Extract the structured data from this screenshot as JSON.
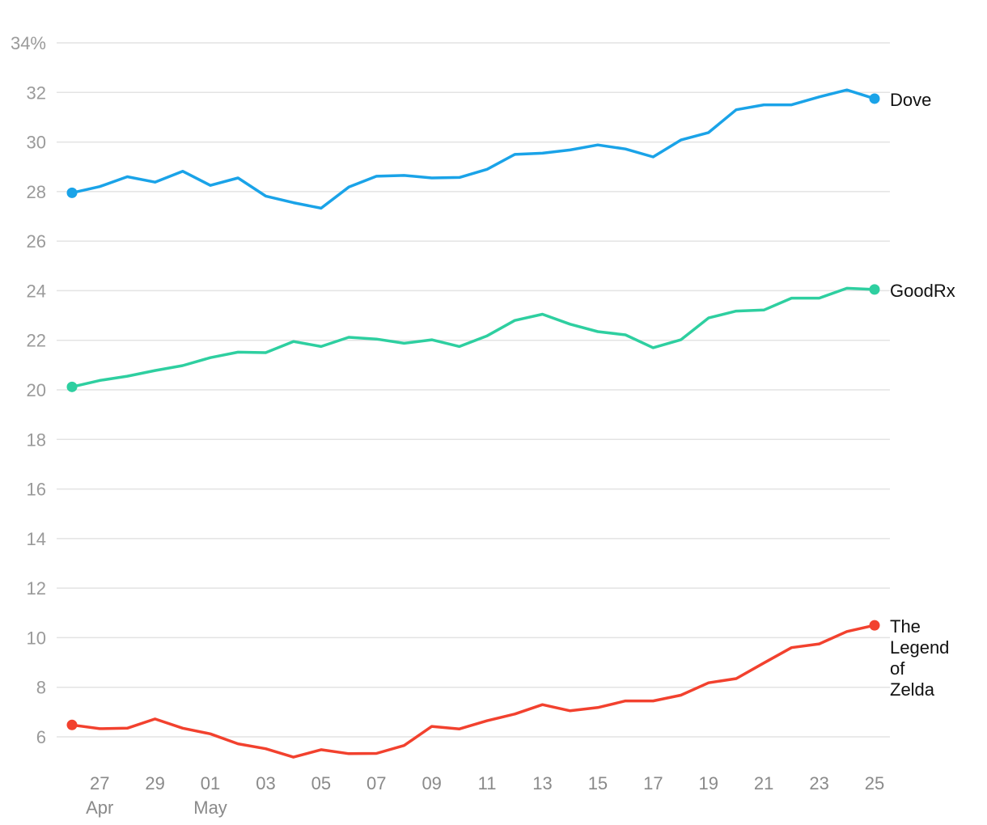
{
  "chart_data": {
    "type": "line",
    "title": "",
    "xlabel": "",
    "ylabel": "",
    "ylim": [
      5,
      34
    ],
    "y_ticks": [
      6,
      8,
      10,
      12,
      14,
      16,
      18,
      20,
      22,
      24,
      26,
      28,
      30,
      32,
      34
    ],
    "y_tick_labels": [
      "6",
      "8",
      "10",
      "12",
      "14",
      "16",
      "18",
      "20",
      "22",
      "24",
      "26",
      "28",
      "30",
      "32",
      "34%"
    ],
    "grid": true,
    "x_ticks": [
      {
        "index": 1,
        "label": "27",
        "sublabel": "Apr"
      },
      {
        "index": 3,
        "label": "29",
        "sublabel": ""
      },
      {
        "index": 5,
        "label": "01",
        "sublabel": "May"
      },
      {
        "index": 7,
        "label": "03",
        "sublabel": ""
      },
      {
        "index": 9,
        "label": "05",
        "sublabel": ""
      },
      {
        "index": 11,
        "label": "07",
        "sublabel": ""
      },
      {
        "index": 13,
        "label": "09",
        "sublabel": ""
      },
      {
        "index": 15,
        "label": "11",
        "sublabel": ""
      },
      {
        "index": 17,
        "label": "13",
        "sublabel": ""
      },
      {
        "index": 19,
        "label": "15",
        "sublabel": ""
      },
      {
        "index": 21,
        "label": "17",
        "sublabel": ""
      },
      {
        "index": 23,
        "label": "19",
        "sublabel": ""
      },
      {
        "index": 25,
        "label": "21",
        "sublabel": ""
      },
      {
        "index": 27,
        "label": "23",
        "sublabel": ""
      },
      {
        "index": 29,
        "label": "25",
        "sublabel": ""
      }
    ],
    "x": [
      "Apr 26",
      "Apr 27",
      "Apr 28",
      "Apr 29",
      "Apr 30",
      "May 01",
      "May 02",
      "May 03",
      "May 04",
      "May 05",
      "May 06",
      "May 07",
      "May 08",
      "May 09",
      "May 10",
      "May 11",
      "May 12",
      "May 13",
      "May 14",
      "May 15",
      "May 16",
      "May 17",
      "May 18",
      "May 19",
      "May 20",
      "May 21",
      "May 22",
      "May 23",
      "May 24",
      "May 25"
    ],
    "series": [
      {
        "name": "Dove",
        "label_lines": [
          "Dove"
        ],
        "color": "#1aa3e8",
        "values": [
          27.95,
          28.2,
          28.6,
          28.38,
          28.82,
          28.25,
          28.55,
          27.82,
          27.55,
          27.33,
          28.18,
          28.62,
          28.65,
          28.55,
          28.57,
          28.9,
          29.5,
          29.55,
          29.68,
          29.88,
          29.72,
          29.4,
          30.08,
          30.38,
          31.3,
          31.5,
          31.5,
          31.82,
          32.1,
          31.75
        ]
      },
      {
        "name": "GoodRx",
        "label_lines": [
          "GoodRx"
        ],
        "color": "#2ecfa0",
        "values": [
          20.12,
          20.38,
          20.55,
          20.78,
          20.98,
          21.3,
          21.52,
          21.5,
          21.95,
          21.75,
          22.12,
          22.05,
          21.88,
          22.02,
          21.75,
          22.18,
          22.8,
          23.05,
          22.65,
          22.35,
          22.22,
          21.7,
          22.02,
          22.9,
          23.18,
          23.22,
          23.7,
          23.7,
          24.1,
          24.05
        ]
      },
      {
        "name": "The Legend of Zelda",
        "label_lines": [
          "The",
          "Legend",
          "of",
          "Zelda"
        ],
        "color": "#f2412e",
        "values": [
          6.48,
          6.33,
          6.35,
          6.72,
          6.35,
          6.12,
          5.72,
          5.52,
          5.18,
          5.48,
          5.32,
          5.33,
          5.65,
          6.42,
          6.32,
          6.65,
          6.92,
          7.3,
          7.05,
          7.18,
          7.45,
          7.45,
          7.68,
          8.18,
          8.35,
          8.98,
          9.6,
          9.75,
          10.25,
          10.5
        ]
      }
    ]
  }
}
